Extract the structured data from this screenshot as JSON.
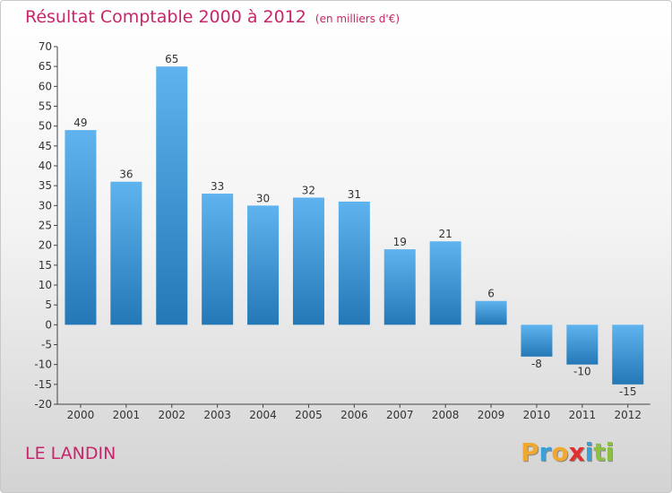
{
  "title": {
    "main": "Résultat Comptable 2000 à 2012",
    "subtitle": "(en milliers d'€)"
  },
  "location": "LE LANDIN",
  "brand": {
    "letters": [
      "P",
      "r",
      "o",
      "x",
      "i",
      "t",
      "i"
    ],
    "colors": [
      "#f0a830",
      "#3aa0d8",
      "#f0a830",
      "#e03030",
      "#3aa0d8",
      "#8cc040",
      "#8cc040"
    ]
  },
  "colors": {
    "bar_top": "#5fb3ee",
    "bar_bottom": "#2478b6",
    "title": "#c8256a"
  },
  "chart_data": {
    "type": "bar",
    "title": "Résultat Comptable 2000 à 2012",
    "subtitle": "(en milliers d'€)",
    "xlabel": "",
    "ylabel": "",
    "categories": [
      "2000",
      "2001",
      "2002",
      "2003",
      "2004",
      "2005",
      "2006",
      "2007",
      "2008",
      "2009",
      "2010",
      "2011",
      "2012"
    ],
    "values": [
      49,
      36,
      65,
      33,
      30,
      32,
      31,
      19,
      21,
      6,
      -8,
      -10,
      -15
    ],
    "data_labels": [
      "49",
      "36",
      "65",
      "33",
      "30",
      "32",
      "31",
      "19",
      "21",
      "6",
      "-8",
      "-10",
      "-15"
    ],
    "ylim": [
      -20,
      70
    ],
    "yticks": [
      70,
      65,
      60,
      55,
      50,
      45,
      40,
      35,
      30,
      25,
      20,
      15,
      10,
      5,
      0,
      -5,
      -10,
      -15,
      -20
    ],
    "grid": false,
    "legend": "none"
  }
}
